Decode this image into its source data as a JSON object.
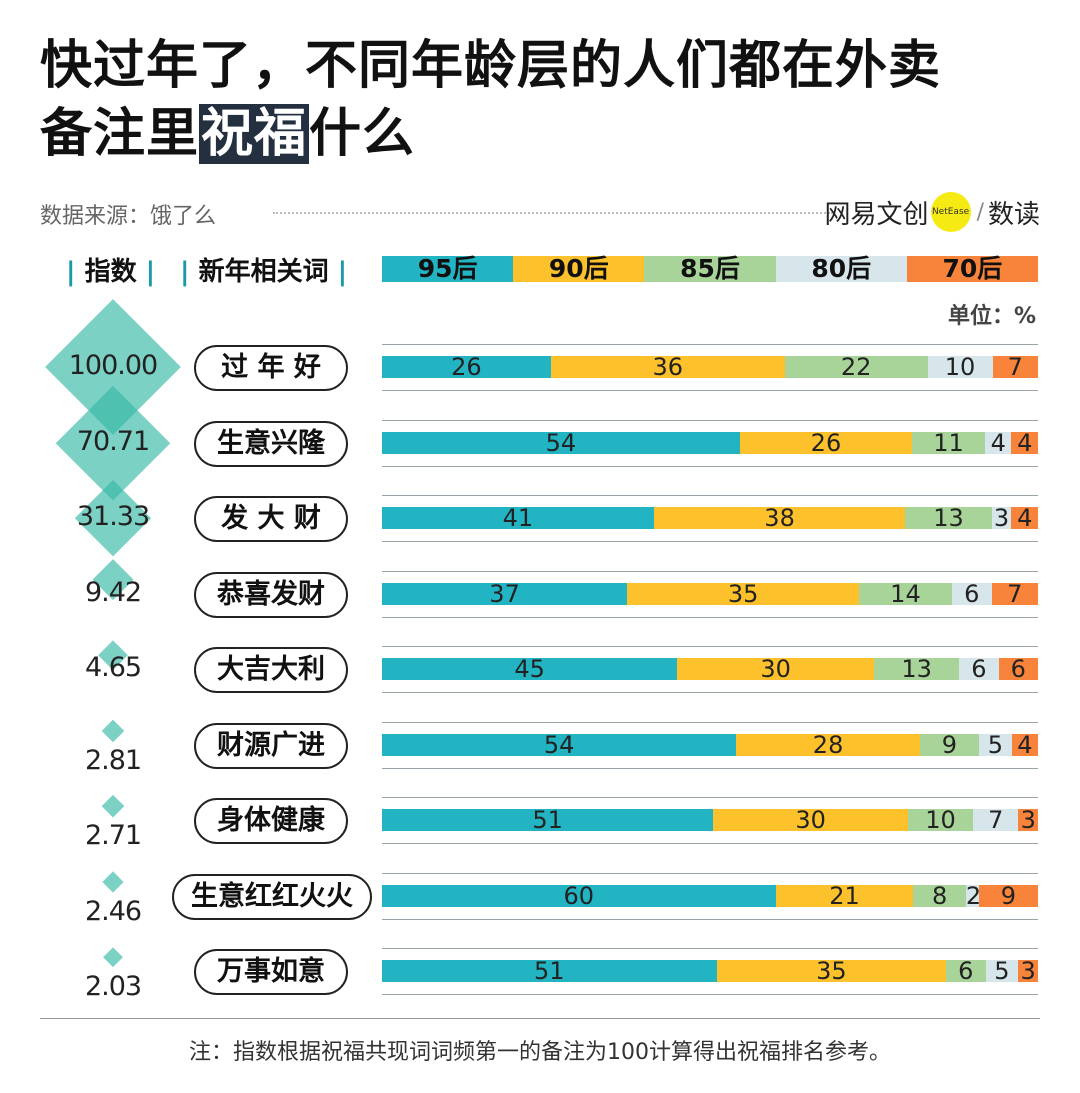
{
  "title": {
    "line1": "快过年了，不同年龄层的人们都在外卖",
    "line2_pre": "备注里",
    "line2_hl": "祝福",
    "line2_post": "什么"
  },
  "source": "数据来源：饿了么",
  "brand": {
    "name": "网易文创",
    "badge": "NetEase",
    "slash": "/",
    "sub": "数读"
  },
  "headers": {
    "index": "指数",
    "word": "新年相关词"
  },
  "unit": "单位：%",
  "footnote": "注：指数根据祝福共现词词频第一的备注为100计算得出祝福排名参考。",
  "colors": {
    "s95": "#22b4c2",
    "s90": "#fdc12c",
    "s85": "#a8d49a",
    "s80": "#d7e6ea",
    "s70": "#f7843a",
    "diamond": "#36b8a6"
  },
  "chart_data": {
    "type": "bar",
    "subtype": "stacked-100-horizontal",
    "series_names": [
      "95后",
      "90后",
      "85后",
      "80后",
      "70后"
    ],
    "categories": [
      "过 年 好",
      "生意兴隆",
      "发 大 财",
      "恭喜发财",
      "大吉大利",
      "财源广进",
      "身体健康",
      "生意红红火火",
      "万事如意"
    ],
    "index": [
      "100.00",
      "70.71",
      "31.33",
      "9.42",
      "4.65",
      "2.81",
      "2.71",
      "2.46",
      "2.03"
    ],
    "index_values": [
      100.0,
      70.71,
      31.33,
      9.42,
      4.65,
      2.81,
      2.71,
      2.46,
      2.03
    ],
    "series": [
      {
        "name": "95后",
        "values": [
          26,
          54,
          41,
          37,
          45,
          54,
          51,
          60,
          51
        ]
      },
      {
        "name": "90后",
        "values": [
          36,
          26,
          38,
          35,
          30,
          28,
          30,
          21,
          35
        ]
      },
      {
        "name": "85后",
        "values": [
          22,
          11,
          13,
          14,
          13,
          9,
          10,
          8,
          6
        ]
      },
      {
        "name": "80后",
        "values": [
          10,
          4,
          3,
          6,
          6,
          5,
          7,
          2,
          5
        ]
      },
      {
        "name": "70后",
        "values": [
          7,
          4,
          4,
          7,
          6,
          4,
          3,
          9,
          3
        ]
      }
    ],
    "unit": "%"
  }
}
